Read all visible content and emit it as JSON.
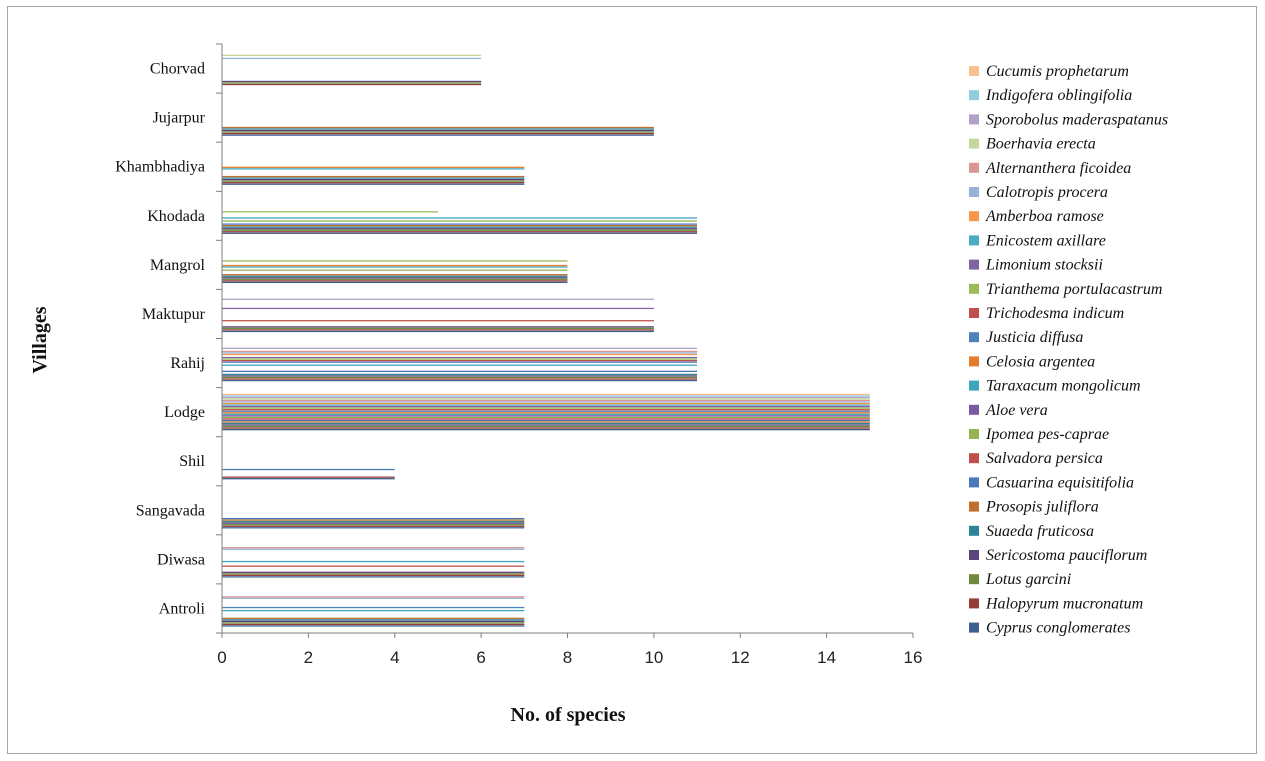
{
  "chart_data": {
    "type": "bar",
    "orientation": "horizontal",
    "xlabel": "No. of species",
    "ylabel": "Villages",
    "xlim": [
      0,
      16
    ],
    "xticks": [
      0,
      2,
      4,
      6,
      8,
      10,
      12,
      14,
      16
    ],
    "categories": [
      "Antroli",
      "Diwasa",
      "Sangavada",
      "Shil",
      "Lodge",
      "Rahij",
      "Maktupur",
      "Mangrol",
      "Khodada",
      "Khambhadiya",
      "Jujarpur",
      "Chorvad"
    ],
    "legend_position": "right",
    "series": [
      {
        "name": "Cyprus conglomerates",
        "color": "#3d5f8f",
        "values": [
          7,
          7,
          7,
          4,
          15,
          11,
          10,
          8,
          11,
          7,
          10,
          0
        ]
      },
      {
        "name": "Halopyrum mucronatum",
        "color": "#963d3a",
        "values": [
          7,
          7,
          7,
          4,
          15,
          11,
          10,
          8,
          11,
          7,
          10,
          6
        ]
      },
      {
        "name": "Lotus garcini",
        "color": "#6f8a3c",
        "values": [
          7,
          7,
          7,
          0,
          15,
          11,
          10,
          8,
          11,
          7,
          10,
          6
        ]
      },
      {
        "name": "Sericostoma pauciflorum",
        "color": "#5a4478",
        "values": [
          7,
          7,
          7,
          0,
          15,
          11,
          10,
          8,
          11,
          7,
          10,
          6
        ]
      },
      {
        "name": "Suaeda fruticosa",
        "color": "#2e8497",
        "values": [
          7,
          0,
          7,
          0,
          15,
          11,
          0,
          8,
          11,
          7,
          10,
          0
        ]
      },
      {
        "name": "Prosopis juliflora",
        "color": "#c0702c",
        "values": [
          7,
          0,
          7,
          0,
          15,
          0,
          0,
          8,
          11,
          7,
          10,
          0
        ]
      },
      {
        "name": "Casuarina equisitifolia",
        "color": "#4a78b8",
        "values": [
          0,
          0,
          7,
          4,
          15,
          11,
          0,
          0,
          11,
          0,
          0,
          0
        ]
      },
      {
        "name": "Salvadora persica",
        "color": "#c24e4b",
        "values": [
          0,
          7,
          0,
          0,
          15,
          0,
          10,
          0,
          0,
          0,
          0,
          0
        ]
      },
      {
        "name": "Ipomea pes-caprae",
        "color": "#95b451",
        "values": [
          0,
          0,
          0,
          0,
          15,
          0,
          0,
          8,
          11,
          0,
          0,
          0
        ]
      },
      {
        "name": "Aloe vera",
        "color": "#7659a0",
        "values": [
          0,
          0,
          0,
          0,
          15,
          0,
          0,
          0,
          0,
          0,
          0,
          0
        ]
      },
      {
        "name": "Taraxacum mongolicum",
        "color": "#3fa5bf",
        "values": [
          7,
          7,
          0,
          0,
          15,
          11,
          0,
          8,
          11,
          7,
          0,
          0
        ]
      },
      {
        "name": "Celosia argentea",
        "color": "#e67d2c",
        "values": [
          0,
          0,
          0,
          0,
          15,
          0,
          0,
          8,
          0,
          7,
          0,
          0
        ]
      },
      {
        "name": "Justicia diffusa",
        "color": "#4f81bd",
        "values": [
          7,
          0,
          0,
          0,
          15,
          11,
          0,
          0,
          0,
          0,
          0,
          0
        ]
      },
      {
        "name": "Trichodesma indicum",
        "color": "#c0504d",
        "values": [
          0,
          0,
          0,
          0,
          15,
          11,
          0,
          0,
          0,
          0,
          0,
          0
        ]
      },
      {
        "name": "Trianthema portulacastrum",
        "color": "#9bbb59",
        "values": [
          0,
          0,
          0,
          0,
          15,
          11,
          0,
          8,
          5,
          0,
          0,
          0
        ]
      },
      {
        "name": "Limonium stocksii",
        "color": "#8064a2",
        "values": [
          0,
          0,
          0,
          0,
          15,
          11,
          10,
          0,
          0,
          0,
          0,
          0
        ]
      },
      {
        "name": "Enicostem axillare",
        "color": "#4bacc6",
        "values": [
          0,
          0,
          0,
          0,
          15,
          0,
          0,
          0,
          0,
          0,
          0,
          0
        ]
      },
      {
        "name": "Amberboa ramose",
        "color": "#f79646",
        "values": [
          0,
          0,
          0,
          0,
          15,
          11,
          0,
          0,
          0,
          0,
          0,
          0
        ]
      },
      {
        "name": "Calotropis procera",
        "color": "#95b3d7",
        "values": [
          7,
          7,
          0,
          0,
          15,
          11,
          0,
          0,
          0,
          0,
          0,
          6
        ]
      },
      {
        "name": "Alternanthera ficoidea",
        "color": "#da9694",
        "values": [
          7,
          7,
          0,
          0,
          15,
          11,
          0,
          0,
          0,
          0,
          0,
          0
        ]
      },
      {
        "name": "Boerhavia erecta",
        "color": "#c4d79b",
        "values": [
          0,
          0,
          0,
          0,
          15,
          0,
          0,
          0,
          0,
          0,
          0,
          6
        ]
      },
      {
        "name": "Sporobolus maderaspatanus",
        "color": "#b1a0c7",
        "values": [
          0,
          0,
          0,
          0,
          15,
          11,
          10,
          0,
          0,
          0,
          0,
          0
        ]
      },
      {
        "name": "Indigofera oblingifolia",
        "color": "#92cddc",
        "values": [
          0,
          0,
          0,
          0,
          15,
          0,
          0,
          0,
          0,
          0,
          0,
          0
        ]
      },
      {
        "name": "Cucumis prophetarum",
        "color": "#fabf8f",
        "values": [
          0,
          0,
          0,
          0,
          15,
          0,
          0,
          0,
          0,
          0,
          0,
          0
        ]
      }
    ]
  }
}
